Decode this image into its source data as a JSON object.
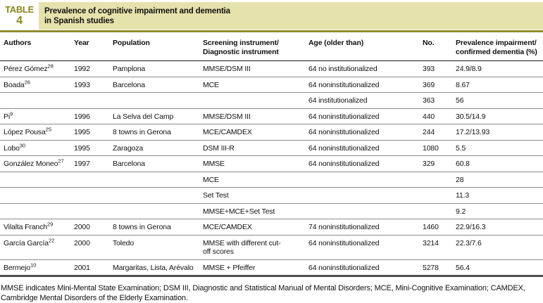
{
  "label": {
    "word": "TABLE",
    "number": "4"
  },
  "title": "Prevalence of cognitive impairment and dementia\nin Spanish studies",
  "colors": {
    "accent_bar": "#e6e2ac",
    "accent_rule": "#8f8c2b",
    "label_text": "#8a871d",
    "row_divider": "#8c8c8c",
    "bottom_rule": "#4d4d4d",
    "text": "#111111"
  },
  "table": {
    "columns": [
      "Authors",
      "Year",
      "Population",
      "Screening instrument/\nDiagnostic instrument",
      "Age (older than)",
      "No.",
      "Prevalence impairment/\nconfirmed dementia (%)"
    ],
    "rows": [
      {
        "author": "Pérez Gómez",
        "ref": "28",
        "year": "1992",
        "population": "Pamplona",
        "screening": "MMSE/DSM III",
        "age": "64 no institutionalized",
        "n": "393",
        "prevalence": "24.9/8.9"
      },
      {
        "author": "Boada",
        "ref": "26",
        "year": "1993",
        "population": "Barcelona",
        "screening": "MCE",
        "age": "64 noninstitutionalized",
        "n": "369",
        "prevalence": "8.67"
      },
      {
        "author": "",
        "ref": "",
        "year": "",
        "population": "",
        "screening": "",
        "age": "64 institutionalized",
        "n": "363",
        "prevalence": "56"
      },
      {
        "author": "Pi",
        "ref": "9",
        "year": "1996",
        "population": "La Selva del Camp",
        "screening": "MMSE/DSM III",
        "age": "64 noninstitutionalized",
        "n": "440",
        "prevalence": "30.5/14.9"
      },
      {
        "author": "López Pousa",
        "ref": "25",
        "year": "1995",
        "population": "8 towns in Gerona",
        "screening": "MCE/CAMDEX",
        "age": "64 noninstitutionalized",
        "n": "244",
        "prevalence": "17.2/13.93"
      },
      {
        "author": "Lobo",
        "ref": "30",
        "year": "1995",
        "population": "Zaragoza",
        "screening": "DSM III-R",
        "age": "64 noninstitutionalized",
        "n": "1080",
        "prevalence": "5.5"
      },
      {
        "author": "González Moneo",
        "ref": "27",
        "year": "1997",
        "population": "Barcelona",
        "screening": "MMSE",
        "age": "64 noninstitutionalized",
        "n": "329",
        "prevalence": "60.8"
      },
      {
        "author": "",
        "ref": "",
        "year": "",
        "population": "",
        "screening": "MCE",
        "age": "",
        "n": "",
        "prevalence": "28"
      },
      {
        "author": "",
        "ref": "",
        "year": "",
        "population": "",
        "screening": "Set Test",
        "age": "",
        "n": "",
        "prevalence": "11.3"
      },
      {
        "author": "",
        "ref": "",
        "year": "",
        "population": "",
        "screening": "MMSE+MCE+Set Test",
        "age": "",
        "n": "",
        "prevalence": "9.2"
      },
      {
        "author": "Vilalta Franch",
        "ref": "29",
        "year": "2000",
        "population": "8 towns in Gerona",
        "screening": "MCE/CAMDEX",
        "age": "74 noninstitutionalized",
        "n": "1460",
        "prevalence": "22.9/16.3"
      },
      {
        "author": "García García",
        "ref": "22",
        "year": "2000",
        "population": "Toledo",
        "screening": "MMSE with different cut-off scores",
        "age": "64 noninstitutionalized",
        "n": "3214",
        "prevalence": "22.3/7.6"
      },
      {
        "author": "Bermejo",
        "ref": "10",
        "year": "2001",
        "population": "Margaritas, Lista, Arévalo",
        "screening": "MMSE + Pfeiffer",
        "age": "64 noninstitutionalized",
        "n": "5278",
        "prevalence": "56.4"
      }
    ]
  },
  "footnote": "MMSE indicates Mini-Mental State Examination; DSM III, Diagnostic and Statistical Manual of Mental Disorders; MCE, Mini-Cognitive Examination; CAMDEX, Cambridge Mental Disorders of the Elderly Examination."
}
